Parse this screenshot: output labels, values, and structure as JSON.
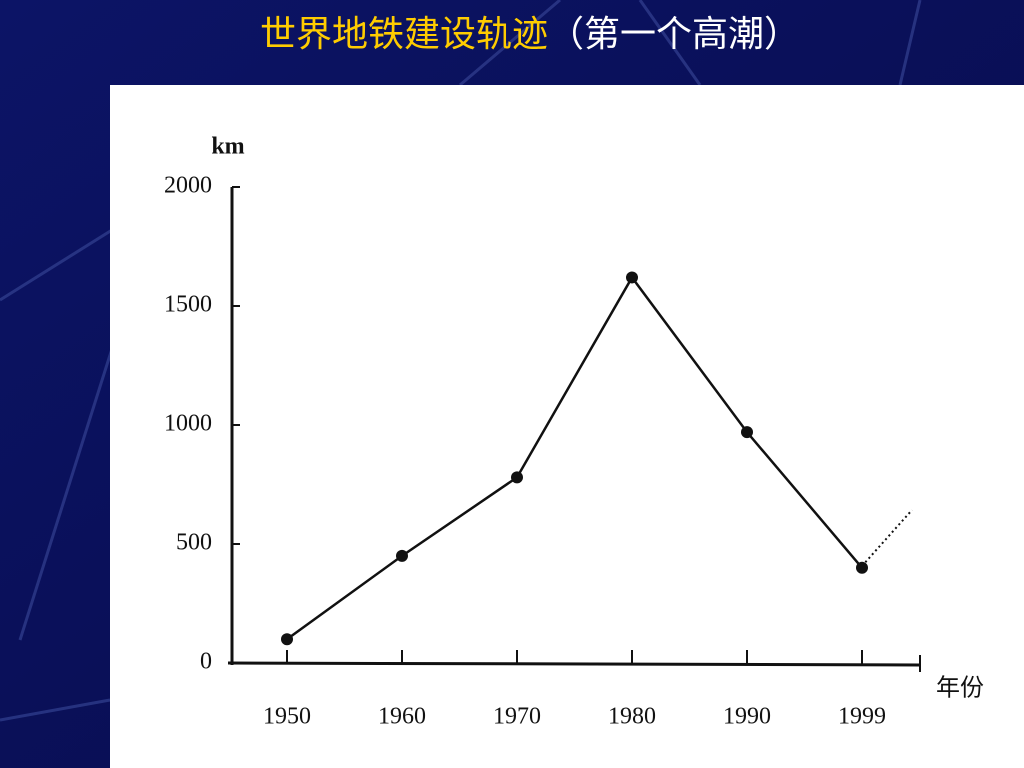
{
  "title_main": "世界地铁建设轨迹",
  "title_sub": "（第一个高潮）",
  "chart_data": {
    "type": "line",
    "y_label": "km",
    "x_label": "年份",
    "categories": [
      "1950",
      "1960",
      "1970",
      "1980",
      "1990",
      "1999"
    ],
    "values": [
      100,
      450,
      780,
      1620,
      970,
      400
    ],
    "color": "#111111",
    "ylim": [
      0,
      2000
    ],
    "yticks": [
      0,
      500,
      1000,
      1500,
      2000
    ]
  }
}
